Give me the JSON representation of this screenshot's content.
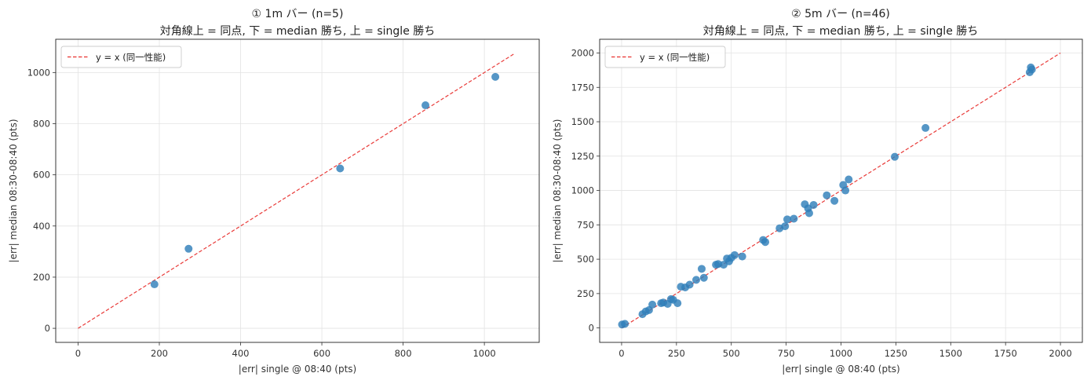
{
  "chart_data": [
    {
      "type": "scatter",
      "title_line1": "① 1m バー (n=5)",
      "title_line2": "対角線上 = 同点, 下 = median 勝ち, 上 = single 勝ち",
      "xlabel": "|err| single @ 08:40 (pts)",
      "ylabel": "|err| median 08:30-08:40 (pts)",
      "xlim": [
        -55,
        1135
      ],
      "ylim": [
        -55,
        1130
      ],
      "xticks": [
        0,
        200,
        400,
        600,
        800,
        1000
      ],
      "yticks": [
        0,
        200,
        400,
        600,
        800,
        1000
      ],
      "grid": true,
      "legend": {
        "label": "y = x (同一性能)",
        "placement": "top-left"
      },
      "reference_line": {
        "from": [
          0,
          0
        ],
        "to": [
          1075,
          1075
        ],
        "color": "#e8312f"
      },
      "point_color": "#2f7fba",
      "points": [
        {
          "x": 188,
          "y": 172
        },
        {
          "x": 272,
          "y": 311
        },
        {
          "x": 645,
          "y": 625
        },
        {
          "x": 855,
          "y": 872
        },
        {
          "x": 1027,
          "y": 983
        }
      ]
    },
    {
      "type": "scatter",
      "title_line1": "② 5m バー (n=46)",
      "title_line2": "対角線上 = 同点, 下 = median 勝ち, 上 = single 勝ち",
      "xlabel": "|err| single @ 08:40 (pts)",
      "ylabel": "|err| median 08:30-08:40 (pts)",
      "xlim": [
        -100,
        2100
      ],
      "ylim": [
        -105,
        2100
      ],
      "xticks": [
        0,
        250,
        500,
        750,
        1000,
        1250,
        1500,
        1750,
        2000
      ],
      "yticks": [
        0,
        250,
        500,
        750,
        1000,
        1250,
        1500,
        1750,
        2000
      ],
      "grid": true,
      "legend": {
        "label": "y = x (同一性能)",
        "placement": "top-left"
      },
      "reference_line": {
        "from": [
          0,
          0
        ],
        "to": [
          2000,
          2000
        ],
        "color": "#e8312f"
      },
      "point_color": "#2f7fba",
      "points": [
        {
          "x": 2,
          "y": 25
        },
        {
          "x": 15,
          "y": 30
        },
        {
          "x": 95,
          "y": 100
        },
        {
          "x": 110,
          "y": 120
        },
        {
          "x": 125,
          "y": 130
        },
        {
          "x": 140,
          "y": 170
        },
        {
          "x": 180,
          "y": 180
        },
        {
          "x": 190,
          "y": 185
        },
        {
          "x": 210,
          "y": 175
        },
        {
          "x": 225,
          "y": 210
        },
        {
          "x": 235,
          "y": 205
        },
        {
          "x": 255,
          "y": 180
        },
        {
          "x": 270,
          "y": 300
        },
        {
          "x": 290,
          "y": 295
        },
        {
          "x": 310,
          "y": 315
        },
        {
          "x": 340,
          "y": 350
        },
        {
          "x": 365,
          "y": 430
        },
        {
          "x": 375,
          "y": 365
        },
        {
          "x": 430,
          "y": 460
        },
        {
          "x": 440,
          "y": 465
        },
        {
          "x": 465,
          "y": 460
        },
        {
          "x": 480,
          "y": 505
        },
        {
          "x": 490,
          "y": 485
        },
        {
          "x": 500,
          "y": 510
        },
        {
          "x": 515,
          "y": 530
        },
        {
          "x": 550,
          "y": 520
        },
        {
          "x": 645,
          "y": 640
        },
        {
          "x": 655,
          "y": 625
        },
        {
          "x": 720,
          "y": 725
        },
        {
          "x": 745,
          "y": 740
        },
        {
          "x": 755,
          "y": 790
        },
        {
          "x": 785,
          "y": 795
        },
        {
          "x": 835,
          "y": 900
        },
        {
          "x": 850,
          "y": 870
        },
        {
          "x": 855,
          "y": 835
        },
        {
          "x": 875,
          "y": 895
        },
        {
          "x": 935,
          "y": 965
        },
        {
          "x": 970,
          "y": 925
        },
        {
          "x": 1010,
          "y": 1040
        },
        {
          "x": 1020,
          "y": 1000
        },
        {
          "x": 1035,
          "y": 1080
        },
        {
          "x": 1245,
          "y": 1245
        },
        {
          "x": 1385,
          "y": 1455
        },
        {
          "x": 1860,
          "y": 1860
        },
        {
          "x": 1865,
          "y": 1895
        },
        {
          "x": 1870,
          "y": 1880
        }
      ]
    }
  ]
}
